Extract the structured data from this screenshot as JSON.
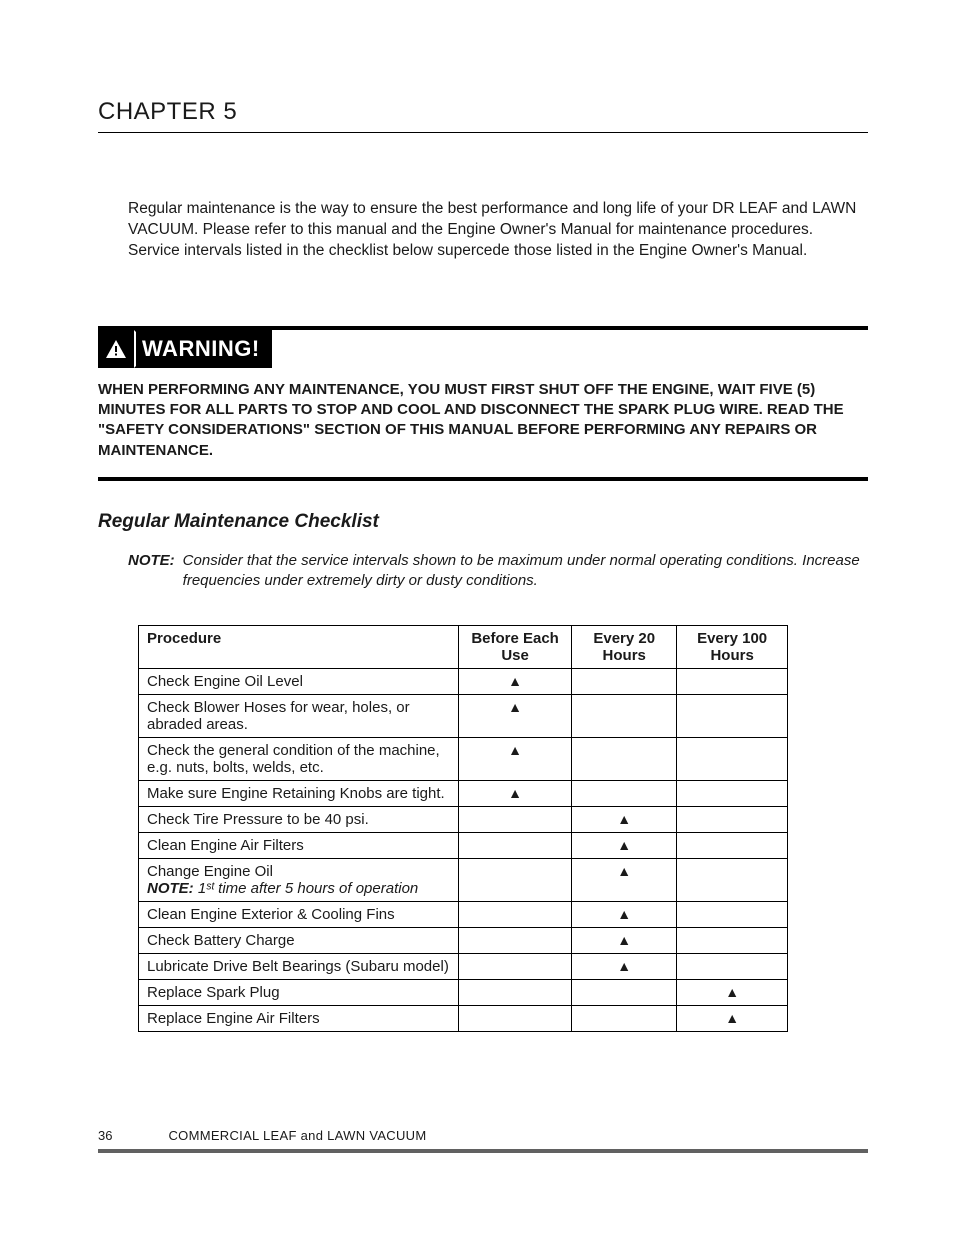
{
  "chapter": {
    "title": "CHAPTER 5"
  },
  "intro": {
    "text": "Regular maintenance is the way to ensure the best performance and long life of your DR LEAF and LAWN VACUUM.  Please refer to this manual and the Engine Owner's Manual for maintenance procedures.  Service intervals listed in the checklist below supercede those listed in the Engine Owner's Manual."
  },
  "warning": {
    "label": "WARNING!",
    "text": "WHEN PERFORMING ANY MAINTENANCE, YOU MUST FIRST SHUT OFF THE ENGINE, WAIT FIVE (5) MINUTES FOR ALL PARTS TO STOP AND COOL AND DISCONNECT THE SPARK PLUG WIRE.  READ THE \"SAFETY CONSIDERATIONS\" SECTION OF THIS MANUAL BEFORE PERFORMING ANY REPAIRS OR MAINTENANCE."
  },
  "section": {
    "title": "Regular Maintenance Checklist"
  },
  "note": {
    "label": "NOTE:",
    "body": "Consider that the service intervals shown to be maximum under normal operating conditions.  Increase frequencies under extremely dirty or dusty conditions."
  },
  "table": {
    "mark_glyph": "▲",
    "headers": {
      "procedure": "Procedure",
      "col1": "Before Each Use",
      "col2": "Every 20 Hours",
      "col3": "Every 100 Hours"
    },
    "rows": [
      {
        "proc": "Check Engine Oil Level",
        "c1": true,
        "c2": false,
        "c3": false
      },
      {
        "proc": "Check Blower Hoses for wear, holes, or abraded areas.",
        "c1": true,
        "c2": false,
        "c3": false
      },
      {
        "proc": "Check the general condition of the machine, e.g. nuts, bolts, welds, etc.",
        "c1": true,
        "c2": false,
        "c3": false
      },
      {
        "proc": "Make sure Engine Retaining Knobs are tight.",
        "c1": true,
        "c2": false,
        "c3": false
      },
      {
        "proc": "Check Tire Pressure to be 40 psi.",
        "c1": false,
        "c2": true,
        "c3": false
      },
      {
        "proc": "Clean Engine Air Filters",
        "c1": false,
        "c2": true,
        "c3": false
      },
      {
        "proc": "Change Engine Oil",
        "note_label": "NOTE:",
        "note_body": "1ˢᵗ time after 5 hours of operation",
        "c1": false,
        "c2": true,
        "c3": false
      },
      {
        "proc": "Clean Engine Exterior & Cooling Fins",
        "c1": false,
        "c2": true,
        "c3": false
      },
      {
        "proc": "Check Battery Charge",
        "c1": false,
        "c2": true,
        "c3": false
      },
      {
        "proc": "Lubricate Drive Belt Bearings (Subaru model)",
        "c1": false,
        "c2": true,
        "c3": false
      },
      {
        "proc": "Replace Spark Plug",
        "c1": false,
        "c2": false,
        "c3": true
      },
      {
        "proc": "Replace Engine Air Filters",
        "c1": false,
        "c2": false,
        "c3": true
      }
    ]
  },
  "footer": {
    "page": "36",
    "title": "COMMERCIAL LEAF and LAWN VACUUM"
  }
}
